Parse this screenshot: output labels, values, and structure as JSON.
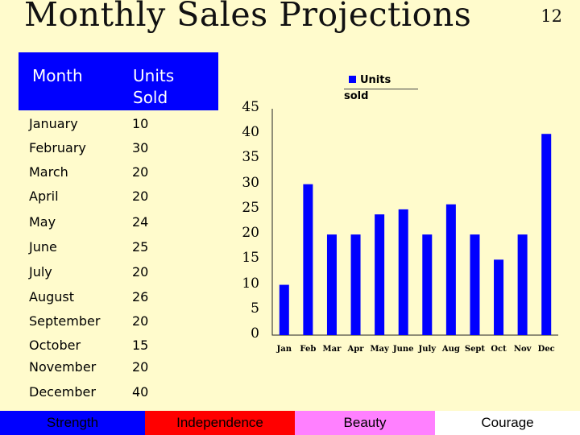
{
  "title": "Monthly Sales Projections",
  "slide_number": "12",
  "table": {
    "headers": [
      "Month",
      "Units\nSold"
    ],
    "rows": [
      [
        "January",
        "10"
      ],
      [
        "February",
        "30"
      ],
      [
        "March",
        "20"
      ],
      [
        "April",
        "20"
      ],
      [
        "May",
        "24"
      ],
      [
        "June",
        "25"
      ],
      [
        "July",
        "20"
      ],
      [
        "August",
        "26"
      ],
      [
        "September",
        "20"
      ],
      [
        "October",
        "15"
      ],
      [
        "November",
        "20"
      ],
      [
        "December",
        "40"
      ]
    ]
  },
  "chart_data": {
    "type": "bar",
    "title": "",
    "xlabel": "",
    "ylabel": "",
    "categories": [
      "Jan",
      "Feb",
      "Mar",
      "Apr",
      "May",
      "June",
      "July",
      "Aug",
      "Sept",
      "Oct",
      "Nov",
      "Dec"
    ],
    "series": [
      {
        "name": "Units sold",
        "values": [
          10,
          30,
          20,
          20,
          24,
          25,
          20,
          26,
          20,
          15,
          20,
          40
        ]
      }
    ],
    "ylim": [
      0,
      45
    ],
    "yticks": [
      "0",
      "5",
      "10",
      "15",
      "20",
      "25",
      "30",
      "35",
      "40",
      "45"
    ],
    "grid": false,
    "legend": "top-center",
    "colors": {
      "bar": "#0000ff"
    }
  },
  "footer": {
    "items": [
      {
        "label": "Strength",
        "color": "#0000ff"
      },
      {
        "label": "Independence",
        "color": "#ff0000"
      },
      {
        "label": "Beauty",
        "color": "#ff80ff"
      },
      {
        "label": "Courage",
        "color": "#ffffff"
      }
    ]
  },
  "colors": {
    "background": "#fffbcc",
    "table_header": "#0000ff"
  }
}
